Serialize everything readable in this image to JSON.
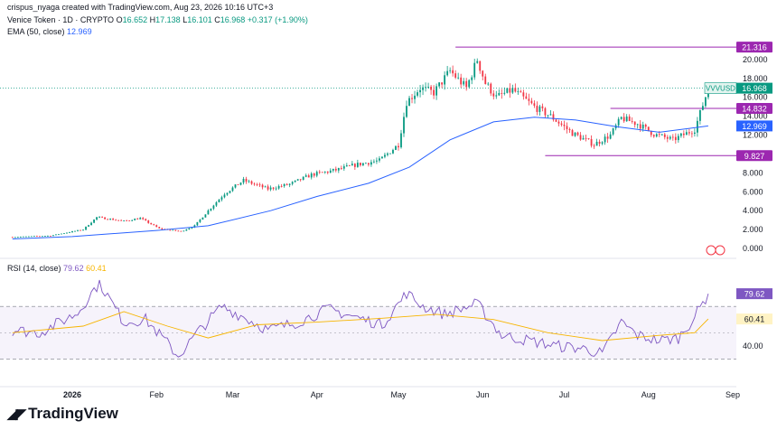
{
  "header": {
    "attribution": "crispus_nyaga created with TradingView.com, Aug 23, 2026 10:16 UTC+3",
    "symbol_line": "Venice Token · 1D · CRYPTO",
    "open_label": "O",
    "open": "16.652",
    "high_label": "H",
    "high": "17.138",
    "low_label": "L",
    "low": "16.101",
    "close_label": "C",
    "close": "16.968",
    "change": "+0.317 (+1.90%)",
    "ema_label": "EMA (50, close)",
    "ema_value": "12.969",
    "rsi_label": "RSI (14, close)",
    "rsi_value": "79.62",
    "rsi_ma": "60.41"
  },
  "footer": {
    "brand": "TradingView"
  },
  "colors": {
    "up": "#089981",
    "down": "#f23645",
    "ema": "#2962ff",
    "rsi": "#7e57c2",
    "rsi_ma": "#f7b500",
    "level": "#9c27b0"
  },
  "chart_data": {
    "type": "candlestick",
    "price_axis_ticks": [
      "0.000",
      "2.000",
      "4.000",
      "6.000",
      "8.000",
      "10.000",
      "12.000",
      "14.000",
      "16.000",
      "18.000",
      "20.000"
    ],
    "x_tick_labels": [
      "2026",
      "Feb",
      "Mar",
      "Apr",
      "May",
      "Jun",
      "Jul",
      "Aug",
      "Sep"
    ],
    "price_range": [
      0,
      22
    ],
    "levels": [
      {
        "label": "21.316",
        "value": 21.316
      },
      {
        "label": "14.832",
        "value": 14.832
      },
      {
        "label": "9.827",
        "value": 9.827
      }
    ],
    "last_price": {
      "label": "VVVUSD",
      "value": 16.968
    },
    "ema_tag": {
      "value": "12.969",
      "level": 12.969
    },
    "anchors": [
      [
        "2025-12-10",
        1.2
      ],
      [
        "2025-12-24",
        1.35
      ],
      [
        "2026-01-05",
        2.0
      ],
      [
        "2026-01-10",
        3.3
      ],
      [
        "2026-01-20",
        2.9
      ],
      [
        "2026-01-26",
        3.2
      ],
      [
        "2026-02-02",
        2.1
      ],
      [
        "2026-02-10",
        1.8
      ],
      [
        "2026-02-15",
        2.4
      ],
      [
        "2026-02-20",
        4.0
      ],
      [
        "2026-02-26",
        5.8
      ],
      [
        "2026-03-05",
        7.2
      ],
      [
        "2026-03-14",
        6.3
      ],
      [
        "2026-03-22",
        6.8
      ],
      [
        "2026-03-30",
        7.8
      ],
      [
        "2026-04-08",
        8.3
      ],
      [
        "2026-04-16",
        8.9
      ],
      [
        "2026-04-24",
        9.3
      ],
      [
        "2026-05-01",
        11.0
      ],
      [
        "2026-05-04",
        15.5
      ],
      [
        "2026-05-09",
        17.0
      ],
      [
        "2026-05-14",
        16.5
      ],
      [
        "2026-05-20",
        18.8
      ],
      [
        "2026-05-26",
        17.0
      ],
      [
        "2026-05-30",
        20.0
      ],
      [
        "2026-06-02",
        17.5
      ],
      [
        "2026-06-06",
        16.0
      ],
      [
        "2026-06-12",
        16.8
      ],
      [
        "2026-06-20",
        15.0
      ],
      [
        "2026-06-26",
        14.0
      ],
      [
        "2026-07-04",
        12.2
      ],
      [
        "2026-07-12",
        11.0
      ],
      [
        "2026-07-18",
        12.0
      ],
      [
        "2026-07-22",
        13.8
      ],
      [
        "2026-07-28",
        13.2
      ],
      [
        "2026-08-03",
        12.1
      ],
      [
        "2026-08-10",
        11.5
      ],
      [
        "2026-08-18",
        12.6
      ],
      [
        "2026-08-21",
        15.2
      ],
      [
        "2026-08-23",
        16.97
      ]
    ],
    "ema_series": [
      [
        "2025-12-10",
        1.0
      ],
      [
        "2026-01-01",
        1.25
      ],
      [
        "2026-02-01",
        1.9
      ],
      [
        "2026-02-20",
        2.4
      ],
      [
        "2026-03-15",
        4.0
      ],
      [
        "2026-04-01",
        5.5
      ],
      [
        "2026-04-20",
        6.9
      ],
      [
        "2026-05-05",
        8.6
      ],
      [
        "2026-05-20",
        11.5
      ],
      [
        "2026-06-05",
        13.4
      ],
      [
        "2026-06-20",
        13.9
      ],
      [
        "2026-07-05",
        13.6
      ],
      [
        "2026-07-20",
        12.9
      ],
      [
        "2026-08-05",
        12.3
      ],
      [
        "2026-08-23",
        12.97
      ]
    ],
    "rsi_axis_ticks": [
      "40.00"
    ],
    "rsi_band": [
      30,
      70
    ],
    "rsi_range": [
      20,
      90
    ],
    "rsi_series": [
      [
        "2025-12-10",
        52
      ],
      [
        "2025-12-20",
        50
      ],
      [
        "2026-01-03",
        65
      ],
      [
        "2026-01-08",
        80
      ],
      [
        "2026-01-11",
        88
      ],
      [
        "2026-01-20",
        58
      ],
      [
        "2026-01-28",
        60
      ],
      [
        "2026-02-05",
        42
      ],
      [
        "2026-02-09",
        32
      ],
      [
        "2026-02-16",
        50
      ],
      [
        "2026-02-25",
        70
      ],
      [
        "2026-03-05",
        62
      ],
      [
        "2026-03-14",
        52
      ],
      [
        "2026-03-25",
        58
      ],
      [
        "2026-04-05",
        68
      ],
      [
        "2026-04-15",
        62
      ],
      [
        "2026-04-25",
        56
      ],
      [
        "2026-05-04",
        80
      ],
      [
        "2026-05-10",
        70
      ],
      [
        "2026-05-18",
        64
      ],
      [
        "2026-05-30",
        72
      ],
      [
        "2026-06-08",
        48
      ],
      [
        "2026-06-18",
        44
      ],
      [
        "2026-06-28",
        40
      ],
      [
        "2026-07-08",
        38
      ],
      [
        "2026-07-15",
        34
      ],
      [
        "2026-07-22",
        58
      ],
      [
        "2026-07-28",
        48
      ],
      [
        "2026-08-05",
        44
      ],
      [
        "2026-08-12",
        46
      ],
      [
        "2026-08-18",
        62
      ],
      [
        "2026-08-23",
        79.62
      ]
    ],
    "rsi_ma_series": [
      [
        "2025-12-10",
        50
      ],
      [
        "2026-01-05",
        55
      ],
      [
        "2026-01-20",
        66
      ],
      [
        "2026-02-05",
        55
      ],
      [
        "2026-02-20",
        46
      ],
      [
        "2026-03-10",
        56
      ],
      [
        "2026-04-01",
        58
      ],
      [
        "2026-04-25",
        61
      ],
      [
        "2026-05-15",
        64
      ],
      [
        "2026-06-05",
        60
      ],
      [
        "2026-06-25",
        50
      ],
      [
        "2026-07-15",
        44
      ],
      [
        "2026-08-05",
        48
      ],
      [
        "2026-08-18",
        50
      ],
      [
        "2026-08-23",
        60.41
      ]
    ]
  }
}
